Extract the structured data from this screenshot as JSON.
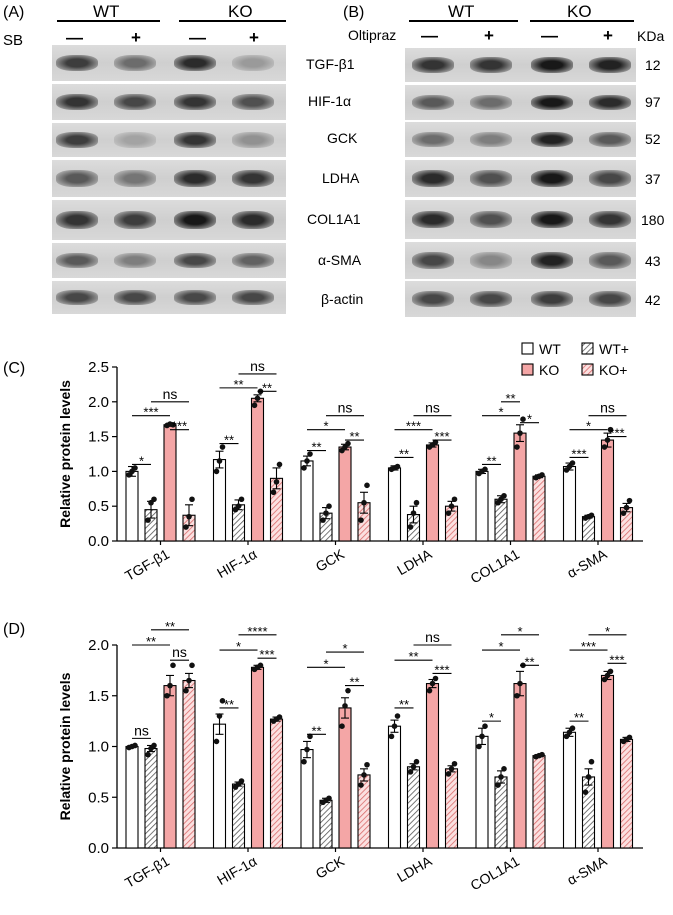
{
  "panelA": {
    "letter": "(A)",
    "groups": [
      "WT",
      "KO"
    ],
    "treatment_label": "SB",
    "signs": [
      "—",
      "+",
      "—",
      "+"
    ],
    "blot_intensities": [
      [
        0.75,
        0.5,
        0.85,
        0.25
      ],
      [
        0.8,
        0.7,
        0.8,
        0.65
      ],
      [
        0.75,
        0.2,
        0.8,
        0.3
      ],
      [
        0.6,
        0.45,
        0.85,
        0.8
      ],
      [
        0.8,
        0.75,
        0.95,
        0.85
      ],
      [
        0.6,
        0.4,
        0.7,
        0.55
      ],
      [
        0.7,
        0.7,
        0.7,
        0.7
      ]
    ]
  },
  "panelB": {
    "letter": "(B)",
    "groups": [
      "WT",
      "KO"
    ],
    "treatment_label": "Oltipraz",
    "signs": [
      "—",
      "+",
      "—",
      "+"
    ],
    "kda_header": "KDa",
    "proteins": [
      "TGF-β1",
      "HIF-1α",
      "GCK",
      "LDHA",
      "COL1A1",
      "α-SMA",
      "β-actin"
    ],
    "kda": [
      "12",
      "97",
      "52",
      "37",
      "180",
      "43",
      "42"
    ],
    "blot_intensities": [
      [
        0.8,
        0.8,
        0.95,
        0.9
      ],
      [
        0.6,
        0.5,
        0.95,
        0.85
      ],
      [
        0.5,
        0.4,
        0.9,
        0.6
      ],
      [
        0.85,
        0.65,
        0.95,
        0.7
      ],
      [
        0.85,
        0.65,
        0.95,
        0.8
      ],
      [
        0.7,
        0.35,
        0.9,
        0.6
      ],
      [
        0.7,
        0.7,
        0.75,
        0.7
      ]
    ]
  },
  "chart_data": [
    {
      "letter": "(C)",
      "type": "bar",
      "ylabel": "Relative protein levels",
      "ylim": [
        0,
        2.5
      ],
      "yticks": [
        "0.0",
        "0.5",
        "1.0",
        "1.5",
        "2.0",
        "2.5"
      ],
      "categories": [
        "TGF-β1",
        "HIF-1α",
        "GCK",
        "LDHA",
        "COL1A1",
        "α-SMA"
      ],
      "legend": [
        "WT",
        "WT+",
        "KO",
        "KO+"
      ],
      "legend_placement": "top-right",
      "series": [
        {
          "name": "WT",
          "values": [
            1.0,
            1.17,
            1.15,
            1.05,
            1.0,
            1.07
          ],
          "errors": [
            0.07,
            0.12,
            0.07,
            0.03,
            0.03,
            0.05
          ]
        },
        {
          "name": "WT+",
          "values": [
            0.45,
            0.52,
            0.4,
            0.38,
            0.6,
            0.35
          ],
          "errors": [
            0.12,
            0.07,
            0.08,
            0.12,
            0.05,
            0.02
          ]
        },
        {
          "name": "KO",
          "values": [
            1.67,
            2.05,
            1.35,
            1.38,
            1.55,
            1.45
          ],
          "errors": [
            0.02,
            0.05,
            0.04,
            0.03,
            0.12,
            0.1
          ]
        },
        {
          "name": "KO+",
          "values": [
            0.37,
            0.9,
            0.55,
            0.5,
            0.93,
            0.48
          ],
          "errors": [
            0.15,
            0.15,
            0.15,
            0.07,
            0.02,
            0.06
          ]
        }
      ],
      "points": [
        [
          [
            0.95,
            1.0,
            1.05
          ],
          [
            0.3,
            0.55,
            0.6
          ],
          [
            1.66,
            1.68,
            1.67
          ],
          [
            0.2,
            0.35,
            0.6
          ]
        ],
        [
          [
            1.0,
            1.15,
            1.35
          ],
          [
            0.45,
            0.5,
            0.6
          ],
          [
            1.95,
            2.05,
            2.15
          ],
          [
            0.7,
            0.85,
            1.1
          ]
        ],
        [
          [
            1.05,
            1.15,
            1.25
          ],
          [
            0.3,
            0.4,
            0.5
          ],
          [
            1.3,
            1.35,
            1.4
          ],
          [
            0.3,
            0.55,
            0.8
          ]
        ],
        [
          [
            1.03,
            1.05,
            1.07
          ],
          [
            0.2,
            0.4,
            0.55
          ],
          [
            1.35,
            1.38,
            1.42
          ],
          [
            0.4,
            0.5,
            0.6
          ]
        ],
        [
          [
            0.97,
            1.0,
            1.03
          ],
          [
            0.55,
            0.6,
            0.65
          ],
          [
            1.35,
            1.55,
            1.75
          ],
          [
            0.91,
            0.93,
            0.95
          ]
        ],
        [
          [
            1.02,
            1.07,
            1.12
          ],
          [
            0.33,
            0.35,
            0.37
          ],
          [
            1.35,
            1.45,
            1.6
          ],
          [
            0.4,
            0.48,
            0.58
          ]
        ]
      ],
      "annotations": [
        {
          "cat": 0,
          "a": 0,
          "b": 1,
          "label": "*",
          "level": 1.1
        },
        {
          "cat": 0,
          "a": 0,
          "b": 2,
          "label": "***",
          "level": 1.8
        },
        {
          "cat": 0,
          "a": 1,
          "b": 3,
          "label": "ns",
          "level": 2.0
        },
        {
          "cat": 0,
          "a": 2,
          "b": 3,
          "label": "***",
          "level": 1.6
        },
        {
          "cat": 1,
          "a": 0,
          "b": 1,
          "label": "**",
          "level": 1.4
        },
        {
          "cat": 1,
          "a": 0,
          "b": 2,
          "label": "**",
          "level": 2.2
        },
        {
          "cat": 1,
          "a": 1,
          "b": 3,
          "label": "ns",
          "level": 2.4
        },
        {
          "cat": 1,
          "a": 2,
          "b": 3,
          "label": "**",
          "level": 2.15
        },
        {
          "cat": 2,
          "a": 0,
          "b": 1,
          "label": "**",
          "level": 1.3
        },
        {
          "cat": 2,
          "a": 0,
          "b": 2,
          "label": "*",
          "level": 1.6
        },
        {
          "cat": 2,
          "a": 1,
          "b": 3,
          "label": "ns",
          "level": 1.8
        },
        {
          "cat": 2,
          "a": 2,
          "b": 3,
          "label": "**",
          "level": 1.45
        },
        {
          "cat": 3,
          "a": 0,
          "b": 1,
          "label": "**",
          "level": 1.2
        },
        {
          "cat": 3,
          "a": 0,
          "b": 2,
          "label": "***",
          "level": 1.6
        },
        {
          "cat": 3,
          "a": 1,
          "b": 3,
          "label": "ns",
          "level": 1.8
        },
        {
          "cat": 3,
          "a": 2,
          "b": 3,
          "label": "***",
          "level": 1.45
        },
        {
          "cat": 4,
          "a": 0,
          "b": 1,
          "label": "**",
          "level": 1.1
        },
        {
          "cat": 4,
          "a": 0,
          "b": 2,
          "label": "*",
          "level": 1.8
        },
        {
          "cat": 4,
          "a": 1,
          "b": 2,
          "label": "**",
          "level": 2.0
        },
        {
          "cat": 4,
          "a": 2,
          "b": 3,
          "label": "*",
          "level": 1.7
        },
        {
          "cat": 5,
          "a": 0,
          "b": 1,
          "label": "***",
          "level": 1.2
        },
        {
          "cat": 5,
          "a": 0,
          "b": 2,
          "label": "*",
          "level": 1.6
        },
        {
          "cat": 5,
          "a": 1,
          "b": 3,
          "label": "ns",
          "level": 1.8
        },
        {
          "cat": 5,
          "a": 2,
          "b": 3,
          "label": "***",
          "level": 1.5
        }
      ]
    },
    {
      "letter": "(D)",
      "type": "bar",
      "ylabel": "Relative protein levels",
      "ylim": [
        0,
        2.0
      ],
      "yticks": [
        "0.0",
        "0.5",
        "1.0",
        "1.5",
        "2.0"
      ],
      "categories": [
        "TGF-β1",
        "HIF-1α",
        "GCK",
        "LDHA",
        "COL1A1",
        "α-SMA"
      ],
      "series": [
        {
          "name": "WT",
          "values": [
            1.0,
            1.22,
            0.97,
            1.2,
            1.1,
            1.14
          ],
          "errors": [
            0.01,
            0.1,
            0.08,
            0.06,
            0.08,
            0.04
          ]
        },
        {
          "name": "WT+",
          "values": [
            0.98,
            0.63,
            0.47,
            0.8,
            0.7,
            0.7
          ],
          "errors": [
            0.03,
            0.02,
            0.02,
            0.03,
            0.06,
            0.08
          ]
        },
        {
          "name": "KO",
          "values": [
            1.6,
            1.78,
            1.38,
            1.62,
            1.62,
            1.7
          ],
          "errors": [
            0.1,
            0.02,
            0.1,
            0.04,
            0.12,
            0.04
          ]
        },
        {
          "name": "KO+",
          "values": [
            1.65,
            1.27,
            0.72,
            0.78,
            0.91,
            1.07
          ],
          "errors": [
            0.07,
            0.02,
            0.06,
            0.03,
            0.01,
            0.02
          ]
        }
      ],
      "points": [
        [
          [
            0.99,
            1.0,
            1.01
          ],
          [
            0.92,
            0.98,
            1.01
          ],
          [
            1.5,
            1.6,
            1.8
          ],
          [
            1.55,
            1.65,
            1.8
          ]
        ],
        [
          [
            1.05,
            1.3,
            1.45
          ],
          [
            0.6,
            0.63,
            0.66
          ],
          [
            1.76,
            1.78,
            1.8
          ],
          [
            1.25,
            1.27,
            1.29
          ]
        ],
        [
          [
            0.85,
            0.97,
            1.1
          ],
          [
            0.45,
            0.47,
            0.49
          ],
          [
            1.2,
            1.4,
            1.55
          ],
          [
            0.62,
            0.72,
            0.82
          ]
        ],
        [
          [
            1.1,
            1.2,
            1.3
          ],
          [
            0.75,
            0.8,
            0.85
          ],
          [
            1.55,
            1.62,
            1.67
          ],
          [
            0.73,
            0.78,
            0.83
          ]
        ],
        [
          [
            1.0,
            1.1,
            1.2
          ],
          [
            0.62,
            0.7,
            0.78
          ],
          [
            1.5,
            1.62,
            1.8
          ],
          [
            0.9,
            0.91,
            0.92
          ]
        ],
        [
          [
            1.1,
            1.14,
            1.18
          ],
          [
            0.55,
            0.7,
            0.85
          ],
          [
            1.66,
            1.7,
            1.74
          ],
          [
            1.05,
            1.07,
            1.09
          ]
        ]
      ],
      "annotations": [
        {
          "cat": 0,
          "a": 0,
          "b": 1,
          "label": "ns",
          "level": 1.08
        },
        {
          "cat": 0,
          "a": 0,
          "b": 2,
          "label": "**",
          "level": 2.0
        },
        {
          "cat": 0,
          "a": 1,
          "b": 3,
          "label": "**",
          "level": 2.15
        },
        {
          "cat": 0,
          "a": 2,
          "b": 3,
          "label": "ns",
          "level": 1.85
        },
        {
          "cat": 1,
          "a": 0,
          "b": 1,
          "label": "**",
          "level": 1.38
        },
        {
          "cat": 1,
          "a": 0,
          "b": 2,
          "label": "*",
          "level": 1.95
        },
        {
          "cat": 1,
          "a": 1,
          "b": 3,
          "label": "****",
          "level": 2.1
        },
        {
          "cat": 1,
          "a": 2,
          "b": 3,
          "label": "***",
          "level": 1.87
        },
        {
          "cat": 2,
          "a": 0,
          "b": 1,
          "label": "**",
          "level": 1.12
        },
        {
          "cat": 2,
          "a": 0,
          "b": 2,
          "label": "*",
          "level": 1.78
        },
        {
          "cat": 2,
          "a": 1,
          "b": 3,
          "label": "*",
          "level": 1.93
        },
        {
          "cat": 2,
          "a": 2,
          "b": 3,
          "label": "**",
          "level": 1.6
        },
        {
          "cat": 3,
          "a": 0,
          "b": 1,
          "label": "**",
          "level": 1.38
        },
        {
          "cat": 3,
          "a": 0,
          "b": 2,
          "label": "**",
          "level": 1.85
        },
        {
          "cat": 3,
          "a": 1,
          "b": 3,
          "label": "ns",
          "level": 2.0
        },
        {
          "cat": 3,
          "a": 2,
          "b": 3,
          "label": "***",
          "level": 1.72
        },
        {
          "cat": 4,
          "a": 0,
          "b": 1,
          "label": "*",
          "level": 1.25
        },
        {
          "cat": 4,
          "a": 0,
          "b": 2,
          "label": "*",
          "level": 1.95
        },
        {
          "cat": 4,
          "a": 1,
          "b": 3,
          "label": "*",
          "level": 2.1
        },
        {
          "cat": 4,
          "a": 2,
          "b": 3,
          "label": "**",
          "level": 1.8
        },
        {
          "cat": 5,
          "a": 0,
          "b": 1,
          "label": "**",
          "level": 1.25
        },
        {
          "cat": 5,
          "a": 0,
          "b": 2,
          "label": "***",
          "level": 1.95
        },
        {
          "cat": 5,
          "a": 1,
          "b": 3,
          "label": "*",
          "level": 2.1
        },
        {
          "cat": 5,
          "a": 2,
          "b": 3,
          "label": "***",
          "level": 1.82
        }
      ]
    }
  ],
  "colors": {
    "wt": "#ffffff",
    "ko": "#f4a6a6",
    "hatch_wt": "#555555",
    "hatch_ko": "#d96a6a"
  }
}
